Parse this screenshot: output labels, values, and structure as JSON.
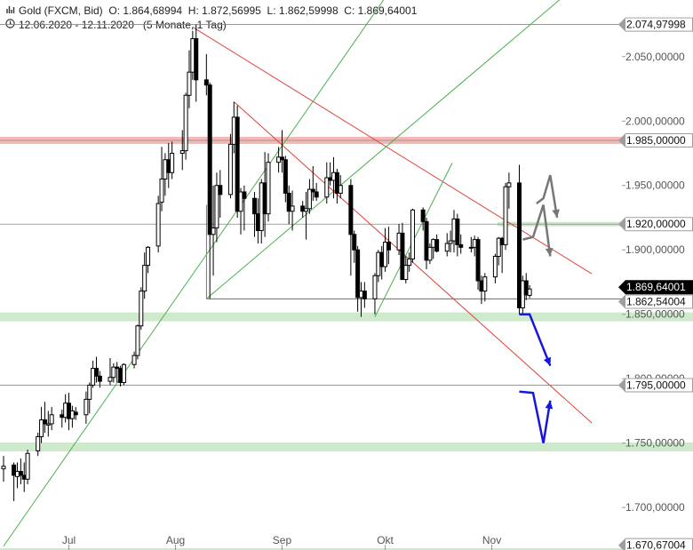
{
  "header": {
    "bar_icon": "bar-chart-icon",
    "instrument": "Gold (FXCM, Bid)",
    "o_label": "O:",
    "o_value": "1.864,68994",
    "h_label": "H:",
    "h_value": "1.872,56995",
    "l_label": "L:",
    "l_value": "1.862,59998",
    "c_label": "C:",
    "c_value": "1.869,64001",
    "clock_icon": "clock-icon",
    "range": "12.06.2020 - 12.11.2020",
    "period": "(5 Monate, 1 Tag)"
  },
  "colors": {
    "candle": "#000000",
    "support_zone": "#cfe9cc",
    "resistance_zone": "#f4b8b5",
    "trend_red": "#e0403a",
    "trend_green": "#4caf50",
    "projection_blue": "#1616e0",
    "projection_gray": "#777777",
    "tag_dark": "#000000",
    "tag_gray": "#9e9e9e"
  },
  "chart_data": {
    "type": "candlestick",
    "ylim": [
      1667,
      2094
    ],
    "y_ticks": [
      {
        "value": 2050,
        "label": "2.050,00000"
      },
      {
        "value": 2000,
        "label": "2.000,00000"
      },
      {
        "value": 1950,
        "label": "1.950,00000"
      },
      {
        "value": 1900,
        "label": "1.900,00000"
      },
      {
        "value": 1850,
        "label": "1.850,00000"
      },
      {
        "value": 1800,
        "label": "1.800,00000"
      },
      {
        "value": 1750,
        "label": "1.750,00000"
      },
      {
        "value": 1700,
        "label": "1.700,00000"
      }
    ],
    "x_ticks": [
      {
        "date": "2020-07-01",
        "label": "Jul"
      },
      {
        "date": "2020-08-01",
        "label": "Aug"
      },
      {
        "date": "2020-09-01",
        "label": "Sep"
      },
      {
        "date": "2020-10-01",
        "label": "Okt"
      },
      {
        "date": "2020-11-01",
        "label": "Nov"
      }
    ],
    "price_tags": [
      {
        "value": 2074.97998,
        "label": "2.074,97998",
        "style": "gray"
      },
      {
        "value": 1985.0,
        "label": "1.985,00000",
        "style": "gray"
      },
      {
        "value": 1920.0,
        "label": "1.920,00000",
        "style": "gray"
      },
      {
        "value": 1869.64001,
        "label": "1.869,64001",
        "style": "dark"
      },
      {
        "value": 1862.54004,
        "label": "1.862,54004",
        "style": "gray"
      },
      {
        "value": 1795.0,
        "label": "1.795,00000",
        "style": "gray"
      },
      {
        "value": 1670.67004,
        "label": "1.670,67004",
        "style": "gray"
      }
    ],
    "horizontal_lines": [
      {
        "value": 2074.97998,
        "kind": "line"
      },
      {
        "value": 1985.0,
        "kind": "resistance-zone"
      },
      {
        "value": 1920.0,
        "kind": "line"
      },
      {
        "value": 1920.0,
        "kind": "support-zone-thin"
      },
      {
        "value": 1848.0,
        "kind": "support-zone"
      },
      {
        "value": 1795.0,
        "kind": "line"
      },
      {
        "value": 1747.0,
        "kind": "support-zone"
      },
      {
        "value": 1665.0,
        "kind": "support-zone"
      }
    ],
    "trendlines": [
      {
        "color": "red",
        "from": [
          "2020-08-06",
          2073
        ],
        "to": [
          "2020-11-12",
          1909
        ]
      },
      {
        "color": "red",
        "from": [
          "2020-08-18",
          2015
        ],
        "to": [
          "2020-11-12",
          1807
        ]
      },
      {
        "color": "green",
        "from": [
          "2020-06-12",
          1670
        ],
        "to": [
          "2020-09-24",
          2094
        ]
      },
      {
        "color": "green",
        "from": [
          "2020-08-10",
          1862
        ],
        "to": [
          "2020-11-12",
          2075
        ]
      },
      {
        "color": "green",
        "from": [
          "2020-09-28",
          1848
        ],
        "to": [
          "2020-10-05",
          1933
        ]
      }
    ],
    "candles": [
      {
        "d": "2020-06-12",
        "o": 1730,
        "h": 1740,
        "l": 1720,
        "c": 1732
      },
      {
        "d": "2020-06-15",
        "o": 1733,
        "h": 1735,
        "l": 1705,
        "c": 1725
      },
      {
        "d": "2020-06-16",
        "o": 1724,
        "h": 1735,
        "l": 1715,
        "c": 1728
      },
      {
        "d": "2020-06-17",
        "o": 1728,
        "h": 1738,
        "l": 1718,
        "c": 1725
      },
      {
        "d": "2020-06-18",
        "o": 1725,
        "h": 1735,
        "l": 1712,
        "c": 1722
      },
      {
        "d": "2020-06-19",
        "o": 1722,
        "h": 1745,
        "l": 1718,
        "c": 1742
      },
      {
        "d": "2020-06-22",
        "o": 1744,
        "h": 1758,
        "l": 1740,
        "c": 1755
      },
      {
        "d": "2020-06-23",
        "o": 1755,
        "h": 1778,
        "l": 1750,
        "c": 1768
      },
      {
        "d": "2020-06-24",
        "o": 1768,
        "h": 1782,
        "l": 1758,
        "c": 1765
      },
      {
        "d": "2020-06-25",
        "o": 1764,
        "h": 1775,
        "l": 1755,
        "c": 1765
      },
      {
        "d": "2020-06-26",
        "o": 1765,
        "h": 1778,
        "l": 1760,
        "c": 1772
      },
      {
        "d": "2020-06-29",
        "o": 1772,
        "h": 1776,
        "l": 1762,
        "c": 1770
      },
      {
        "d": "2020-06-30",
        "o": 1770,
        "h": 1788,
        "l": 1766,
        "c": 1781
      },
      {
        "d": "2020-07-01",
        "o": 1781,
        "h": 1789,
        "l": 1760,
        "c": 1769
      },
      {
        "d": "2020-07-02",
        "o": 1769,
        "h": 1779,
        "l": 1762,
        "c": 1775
      },
      {
        "d": "2020-07-03",
        "o": 1774,
        "h": 1778,
        "l": 1768,
        "c": 1772
      },
      {
        "d": "2020-07-06",
        "o": 1772,
        "h": 1790,
        "l": 1765,
        "c": 1784
      },
      {
        "d": "2020-07-07",
        "o": 1784,
        "h": 1797,
        "l": 1773,
        "c": 1795
      },
      {
        "d": "2020-07-08",
        "o": 1795,
        "h": 1814,
        "l": 1793,
        "c": 1808
      },
      {
        "d": "2020-07-09",
        "o": 1808,
        "h": 1817,
        "l": 1797,
        "c": 1802
      },
      {
        "d": "2020-07-10",
        "o": 1802,
        "h": 1806,
        "l": 1793,
        "c": 1798
      },
      {
        "d": "2020-07-13",
        "o": 1798,
        "h": 1816,
        "l": 1795,
        "c": 1801
      },
      {
        "d": "2020-07-14",
        "o": 1801,
        "h": 1812,
        "l": 1797,
        "c": 1809
      },
      {
        "d": "2020-07-15",
        "o": 1809,
        "h": 1813,
        "l": 1797,
        "c": 1808
      },
      {
        "d": "2020-07-16",
        "o": 1808,
        "h": 1810,
        "l": 1794,
        "c": 1797
      },
      {
        "d": "2020-07-17",
        "o": 1797,
        "h": 1812,
        "l": 1795,
        "c": 1811
      },
      {
        "d": "2020-07-20",
        "o": 1811,
        "h": 1821,
        "l": 1808,
        "c": 1818
      },
      {
        "d": "2020-07-21",
        "o": 1818,
        "h": 1842,
        "l": 1815,
        "c": 1841
      },
      {
        "d": "2020-07-22",
        "o": 1841,
        "h": 1871,
        "l": 1838,
        "c": 1868
      },
      {
        "d": "2020-07-23",
        "o": 1868,
        "h": 1898,
        "l": 1862,
        "c": 1888
      },
      {
        "d": "2020-07-24",
        "o": 1888,
        "h": 1903,
        "l": 1882,
        "c": 1902
      },
      {
        "d": "2020-07-27",
        "o": 1903,
        "h": 1942,
        "l": 1898,
        "c": 1936
      },
      {
        "d": "2020-07-28",
        "o": 1937,
        "h": 1980,
        "l": 1930,
        "c": 1955
      },
      {
        "d": "2020-07-29",
        "o": 1955,
        "h": 1975,
        "l": 1942,
        "c": 1970
      },
      {
        "d": "2020-07-30",
        "o": 1970,
        "h": 1983,
        "l": 1948,
        "c": 1960
      },
      {
        "d": "2020-07-31",
        "o": 1960,
        "h": 1984,
        "l": 1955,
        "c": 1975
      },
      {
        "d": "2020-08-03",
        "o": 1975,
        "h": 1993,
        "l": 1962,
        "c": 1977
      },
      {
        "d": "2020-08-04",
        "o": 1977,
        "h": 2022,
        "l": 1970,
        "c": 2020
      },
      {
        "d": "2020-08-05",
        "o": 2020,
        "h": 2055,
        "l": 2010,
        "c": 2038
      },
      {
        "d": "2020-08-06",
        "o": 2038,
        "h": 2070,
        "l": 2032,
        "c": 2064
      },
      {
        "d": "2020-08-07",
        "o": 2064,
        "h": 2075,
        "l": 2015,
        "c": 2032
      },
      {
        "d": "2020-08-10",
        "o": 2032,
        "h": 2052,
        "l": 2020,
        "c": 2028
      },
      {
        "d": "2020-08-11",
        "o": 2028,
        "h": 2030,
        "l": 1862,
        "c": 1912
      },
      {
        "d": "2020-08-12",
        "o": 1912,
        "h": 1950,
        "l": 1880,
        "c": 1917
      },
      {
        "d": "2020-08-13",
        "o": 1917,
        "h": 1960,
        "l": 1906,
        "c": 1950
      },
      {
        "d": "2020-08-14",
        "o": 1950,
        "h": 1962,
        "l": 1925,
        "c": 1943
      },
      {
        "d": "2020-08-17",
        "o": 1943,
        "h": 1990,
        "l": 1940,
        "c": 1982
      },
      {
        "d": "2020-08-18",
        "o": 1982,
        "h": 2015,
        "l": 1975,
        "c": 2003
      },
      {
        "d": "2020-08-19",
        "o": 2003,
        "h": 2012,
        "l": 1925,
        "c": 1930
      },
      {
        "d": "2020-08-20",
        "o": 1930,
        "h": 1948,
        "l": 1912,
        "c": 1945
      },
      {
        "d": "2020-08-21",
        "o": 1945,
        "h": 1950,
        "l": 1915,
        "c": 1940
      },
      {
        "d": "2020-08-24",
        "o": 1940,
        "h": 1945,
        "l": 1910,
        "c": 1928
      },
      {
        "d": "2020-08-25",
        "o": 1928,
        "h": 1940,
        "l": 1905,
        "c": 1915
      },
      {
        "d": "2020-08-26",
        "o": 1915,
        "h": 1955,
        "l": 1905,
        "c": 1952
      },
      {
        "d": "2020-08-27",
        "o": 1952,
        "h": 1976,
        "l": 1910,
        "c": 1928
      },
      {
        "d": "2020-08-28",
        "o": 1928,
        "h": 1975,
        "l": 1922,
        "c": 1968
      },
      {
        "d": "2020-08-31",
        "o": 1968,
        "h": 1980,
        "l": 1960,
        "c": 1972
      },
      {
        "d": "2020-09-01",
        "o": 1972,
        "h": 1993,
        "l": 1960,
        "c": 1970
      },
      {
        "d": "2020-09-02",
        "o": 1970,
        "h": 1973,
        "l": 1937,
        "c": 1944
      },
      {
        "d": "2020-09-03",
        "o": 1944,
        "h": 1950,
        "l": 1920,
        "c": 1930
      },
      {
        "d": "2020-09-04",
        "o": 1930,
        "h": 1946,
        "l": 1915,
        "c": 1934
      },
      {
        "d": "2020-09-07",
        "o": 1934,
        "h": 1938,
        "l": 1925,
        "c": 1930
      },
      {
        "d": "2020-09-08",
        "o": 1930,
        "h": 1945,
        "l": 1908,
        "c": 1932
      },
      {
        "d": "2020-09-09",
        "o": 1932,
        "h": 1955,
        "l": 1928,
        "c": 1947
      },
      {
        "d": "2020-09-10",
        "o": 1947,
        "h": 1965,
        "l": 1938,
        "c": 1945
      },
      {
        "d": "2020-09-11",
        "o": 1945,
        "h": 1952,
        "l": 1938,
        "c": 1941
      },
      {
        "d": "2020-09-14",
        "o": 1941,
        "h": 1968,
        "l": 1936,
        "c": 1956
      },
      {
        "d": "2020-09-15",
        "o": 1956,
        "h": 1968,
        "l": 1950,
        "c": 1954
      },
      {
        "d": "2020-09-16",
        "o": 1954,
        "h": 1972,
        "l": 1940,
        "c": 1960
      },
      {
        "d": "2020-09-17",
        "o": 1960,
        "h": 1963,
        "l": 1936,
        "c": 1944
      },
      {
        "d": "2020-09-18",
        "o": 1944,
        "h": 1958,
        "l": 1940,
        "c": 1950
      },
      {
        "d": "2020-09-21",
        "o": 1950,
        "h": 1955,
        "l": 1880,
        "c": 1912
      },
      {
        "d": "2020-09-22",
        "o": 1912,
        "h": 1915,
        "l": 1890,
        "c": 1900
      },
      {
        "d": "2020-09-23",
        "o": 1900,
        "h": 1903,
        "l": 1852,
        "c": 1863
      },
      {
        "d": "2020-09-24",
        "o": 1863,
        "h": 1875,
        "l": 1848,
        "c": 1868
      },
      {
        "d": "2020-09-25",
        "o": 1868,
        "h": 1875,
        "l": 1855,
        "c": 1862
      },
      {
        "d": "2020-09-28",
        "o": 1862,
        "h": 1882,
        "l": 1850,
        "c": 1880
      },
      {
        "d": "2020-09-29",
        "o": 1880,
        "h": 1900,
        "l": 1875,
        "c": 1898
      },
      {
        "d": "2020-09-30",
        "o": 1898,
        "h": 1903,
        "l": 1877,
        "c": 1887
      },
      {
        "d": "2020-10-01",
        "o": 1887,
        "h": 1917,
        "l": 1883,
        "c": 1906
      },
      {
        "d": "2020-10-02",
        "o": 1906,
        "h": 1918,
        "l": 1889,
        "c": 1900
      },
      {
        "d": "2020-10-05",
        "o": 1900,
        "h": 1920,
        "l": 1896,
        "c": 1913
      },
      {
        "d": "2020-10-06",
        "o": 1913,
        "h": 1921,
        "l": 1877,
        "c": 1877
      },
      {
        "d": "2020-10-07",
        "o": 1877,
        "h": 1895,
        "l": 1874,
        "c": 1888
      },
      {
        "d": "2020-10-08",
        "o": 1888,
        "h": 1898,
        "l": 1883,
        "c": 1893
      },
      {
        "d": "2020-10-09",
        "o": 1893,
        "h": 1932,
        "l": 1890,
        "c": 1931
      },
      {
        "d": "2020-10-12",
        "o": 1931,
        "h": 1933,
        "l": 1915,
        "c": 1922
      },
      {
        "d": "2020-10-13",
        "o": 1922,
        "h": 1925,
        "l": 1885,
        "c": 1892
      },
      {
        "d": "2020-10-14",
        "o": 1892,
        "h": 1905,
        "l": 1889,
        "c": 1902
      },
      {
        "d": "2020-10-15",
        "o": 1902,
        "h": 1909,
        "l": 1893,
        "c": 1908
      },
      {
        "d": "2020-10-16",
        "o": 1908,
        "h": 1912,
        "l": 1898,
        "c": 1899
      },
      {
        "d": "2020-10-19",
        "o": 1899,
        "h": 1913,
        "l": 1895,
        "c": 1905
      },
      {
        "d": "2020-10-20",
        "o": 1905,
        "h": 1915,
        "l": 1898,
        "c": 1907
      },
      {
        "d": "2020-10-21",
        "o": 1907,
        "h": 1931,
        "l": 1898,
        "c": 1924
      },
      {
        "d": "2020-10-22",
        "o": 1924,
        "h": 1928,
        "l": 1895,
        "c": 1904
      },
      {
        "d": "2020-10-23",
        "o": 1904,
        "h": 1912,
        "l": 1897,
        "c": 1902
      },
      {
        "d": "2020-10-26",
        "o": 1902,
        "h": 1910,
        "l": 1898,
        "c": 1902
      },
      {
        "d": "2020-10-27",
        "o": 1902,
        "h": 1911,
        "l": 1895,
        "c": 1908
      },
      {
        "d": "2020-10-28",
        "o": 1908,
        "h": 1910,
        "l": 1869,
        "c": 1876
      },
      {
        "d": "2020-10-29",
        "o": 1876,
        "h": 1880,
        "l": 1858,
        "c": 1868
      },
      {
        "d": "2020-10-30",
        "o": 1868,
        "h": 1882,
        "l": 1860,
        "c": 1879
      },
      {
        "d": "2020-11-02",
        "o": 1879,
        "h": 1897,
        "l": 1874,
        "c": 1895
      },
      {
        "d": "2020-11-03",
        "o": 1895,
        "h": 1910,
        "l": 1888,
        "c": 1909
      },
      {
        "d": "2020-11-04",
        "o": 1909,
        "h": 1910,
        "l": 1882,
        "c": 1904
      },
      {
        "d": "2020-11-05",
        "o": 1904,
        "h": 1952,
        "l": 1900,
        "c": 1949
      },
      {
        "d": "2020-11-06",
        "o": 1949,
        "h": 1960,
        "l": 1932,
        "c": 1952
      },
      {
        "d": "2020-11-09",
        "o": 1952,
        "h": 1966,
        "l": 1850,
        "c": 1855
      },
      {
        "d": "2020-11-10",
        "o": 1855,
        "h": 1880,
        "l": 1850,
        "c": 1876
      },
      {
        "d": "2020-11-11",
        "o": 1876,
        "h": 1882,
        "l": 1861,
        "c": 1865
      },
      {
        "d": "2020-11-12",
        "o": 1864.68994,
        "h": 1872.56995,
        "l": 1862.59998,
        "c": 1869.64001
      }
    ],
    "projection_blue": [
      [
        "2020-11-09",
        1850
      ],
      [
        "2020-11-12",
        1850
      ],
      [
        "2020-11-18",
        1810
      ],
      [
        "2020-11-09",
        1790
      ],
      [
        "2020-11-13",
        1789
      ],
      [
        "2020-11-16",
        1750
      ],
      [
        "2020-11-18",
        1783
      ]
    ],
    "projection_gray": [
      [
        "2020-11-10",
        1908
      ],
      [
        "2020-11-13",
        1910
      ],
      [
        "2020-11-14",
        1936
      ],
      [
        "2020-11-16",
        1940
      ],
      [
        "2020-11-18",
        1958
      ],
      [
        "2020-11-20",
        1925
      ],
      [
        "2020-11-16",
        1935
      ],
      [
        "2020-11-18",
        1895
      ]
    ]
  }
}
